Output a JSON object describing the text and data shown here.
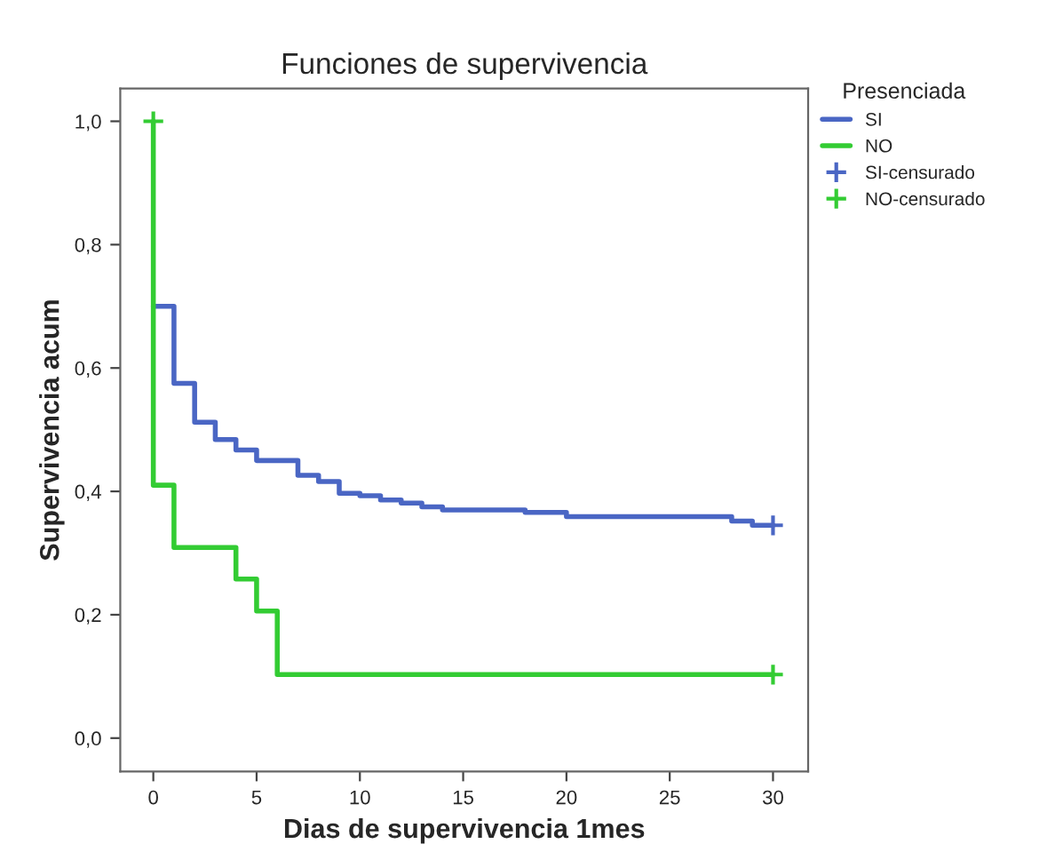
{
  "chart_data": {
    "type": "step",
    "title": "Funciones de supervivencia",
    "xlabel": "Dias de supervivencia 1mes",
    "ylabel": "Supervivencia acum",
    "legend_title": "Presenciada",
    "legend": "right",
    "xlim": [
      -1.6,
      31.7
    ],
    "xticks": [
      0,
      5,
      10,
      15,
      20,
      25,
      30
    ],
    "ylim": [
      -0.054,
      1.053
    ],
    "yticks": [
      {
        "value": 0.0,
        "label": "0,0"
      },
      {
        "value": 0.2,
        "label": "0,2"
      },
      {
        "value": 0.4,
        "label": "0,4"
      },
      {
        "value": 0.6,
        "label": "0,6"
      },
      {
        "value": 0.8,
        "label": "0,8"
      },
      {
        "value": 1.0,
        "label": "1,0"
      }
    ],
    "grid": false,
    "series": [
      {
        "name": "SI",
        "color": "#4a66c4",
        "x": [
          0,
          1,
          2,
          3,
          4,
          5,
          7,
          8,
          9,
          10,
          11,
          12,
          13,
          14,
          18,
          20,
          28,
          29,
          30
        ],
        "values": [
          0.7,
          0.575,
          0.512,
          0.484,
          0.467,
          0.45,
          0.426,
          0.416,
          0.397,
          0.393,
          0.386,
          0.381,
          0.375,
          0.37,
          0.366,
          0.359,
          0.352,
          0.345,
          0.345
        ]
      },
      {
        "name": "NO",
        "color": "#33cc33",
        "x": [
          0,
          0,
          1,
          4,
          5,
          6,
          30
        ],
        "values": [
          1.0,
          0.41,
          0.309,
          0.258,
          0.206,
          0.103,
          0.103
        ]
      },
      {
        "name": "SI-censurado",
        "type": "scatter",
        "marker": "cross",
        "color": "#4a66c4",
        "x": [
          30
        ],
        "values": [
          0.345
        ]
      },
      {
        "name": "NO-censurado",
        "type": "scatter",
        "marker": "cross",
        "color": "#33cc33",
        "x": [
          0,
          30
        ],
        "values": [
          1.0,
          0.103
        ]
      }
    ]
  }
}
